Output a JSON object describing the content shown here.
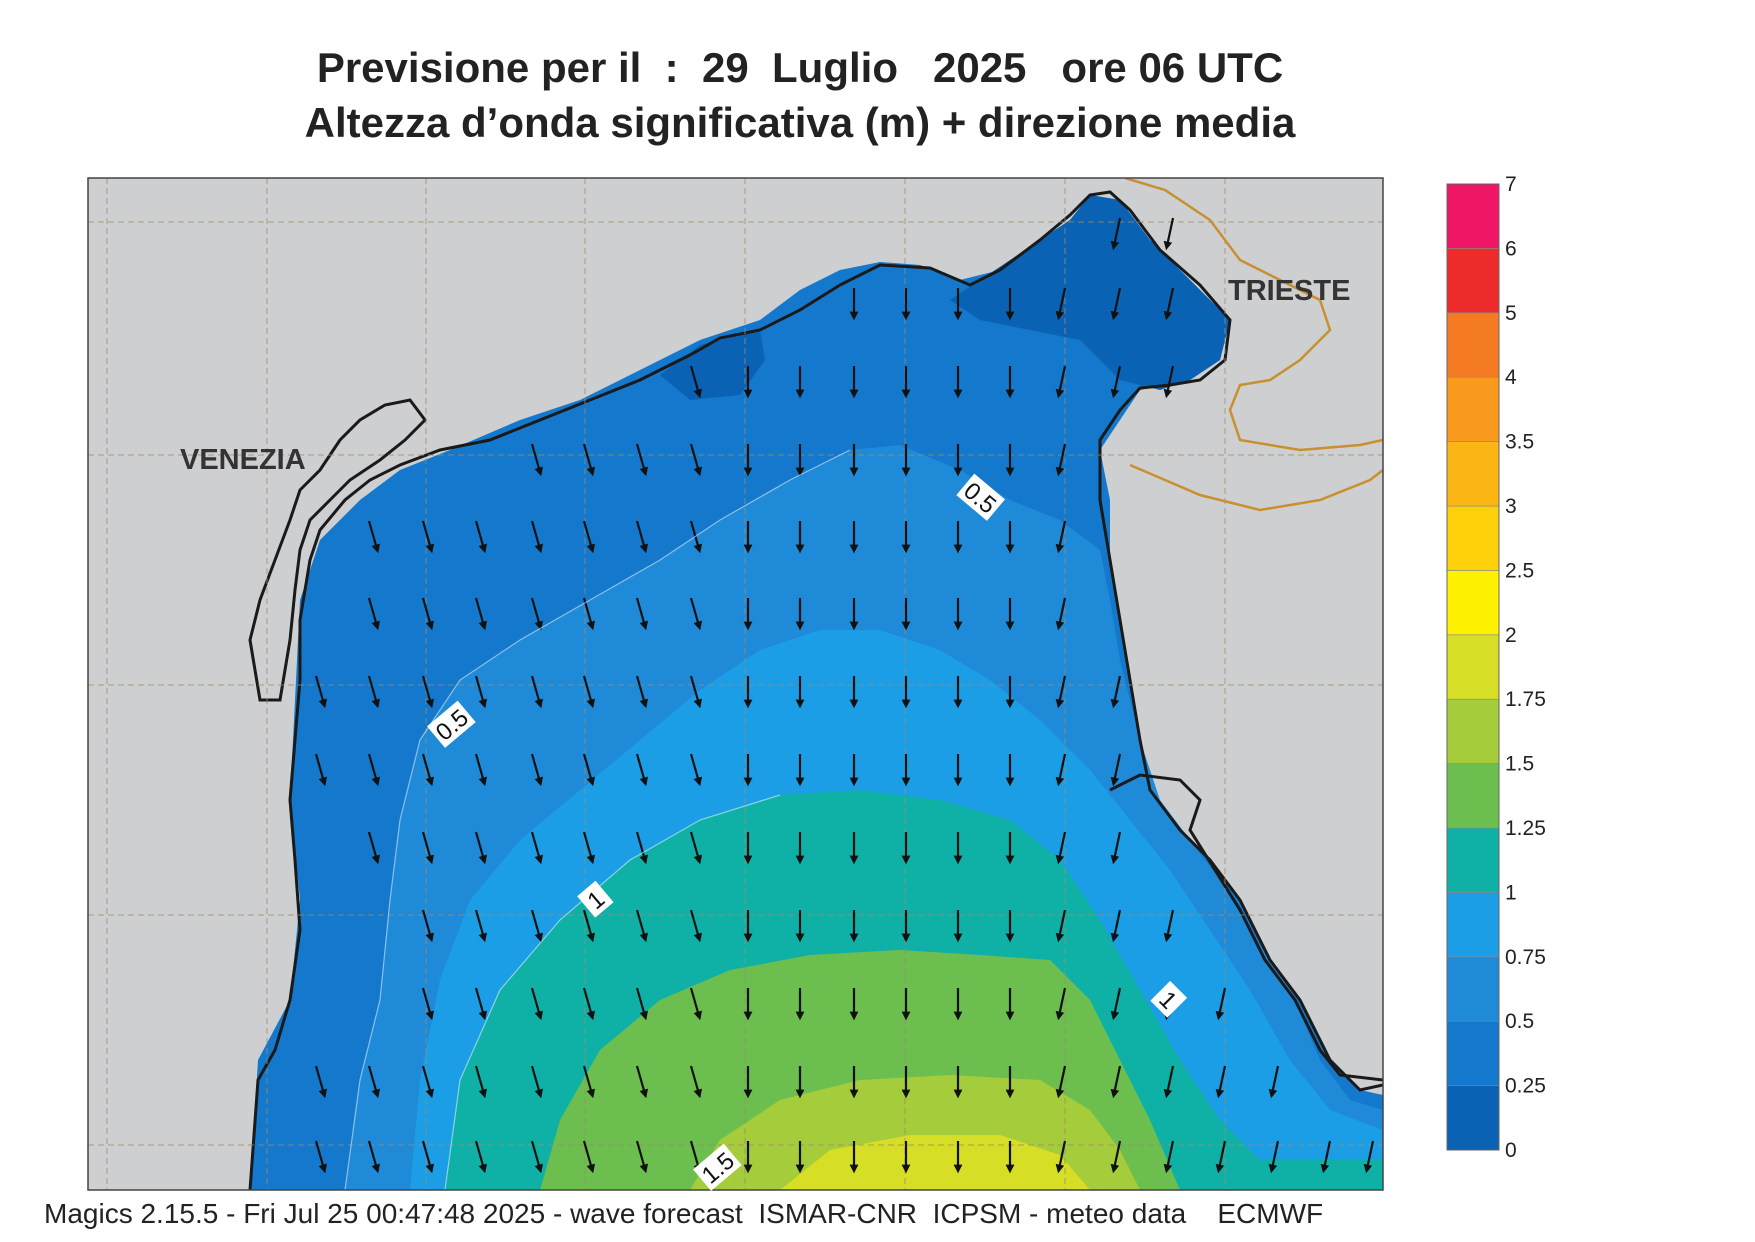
{
  "title": {
    "line1": "Previsione per il  :  29  Luglio   2025   ore 06 UTC",
    "line2": "Altezza d’onda significativa (m) + direzione media"
  },
  "cities": {
    "venezia": "VENEZIA",
    "trieste": "TRIESTE"
  },
  "contour_labels": {
    "north": "0.5",
    "west": "0.5",
    "center": "1",
    "east": "1",
    "south": "1.5"
  },
  "colorbar": {
    "ticks": [
      "0",
      "0.25",
      "0.5",
      "0.75",
      "1",
      "1.25",
      "1.5",
      "1.75",
      "2",
      "2.5",
      "3",
      "3.5",
      "4",
      "5",
      "6",
      "7"
    ],
    "colors": [
      "#0a62b4",
      "#1478cc",
      "#1e8ad8",
      "#1b9ee6",
      "#0fb0a6",
      "#6cbe4f",
      "#a5cc3a",
      "#d6df25",
      "#fff200",
      "#fdd00a",
      "#fbb515",
      "#f99a1c",
      "#f57b23",
      "#ee2b2b",
      "#ef1766"
    ]
  },
  "colors": {
    "land": "#cdcfd1",
    "border": "#c8902f",
    "coast": "#1a1a1a"
  },
  "footer": "Magics 2.15.5 - Fri Jul 25 00:47:48 2025 - wave forecast  ISMAR-CNR  ICPSM - meteo data    ECMWF"
}
